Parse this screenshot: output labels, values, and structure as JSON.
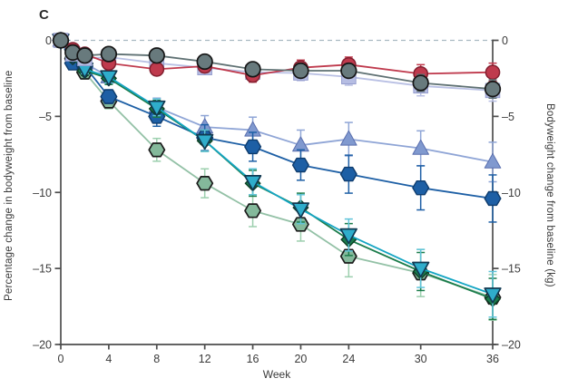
{
  "panel": {
    "label": "C"
  },
  "axes": {
    "x": {
      "label": "Week",
      "tick_values": [
        0,
        4,
        8,
        12,
        16,
        20,
        24,
        30,
        36
      ],
      "tick_labels": [
        "0",
        "4",
        "8",
        "12",
        "16",
        "20",
        "24",
        "30",
        "36"
      ],
      "range": [
        0,
        36
      ]
    },
    "y_left": {
      "label": "Percentage change in bodyweight from baseline",
      "tick_values": [
        0,
        -5,
        -10,
        -15,
        -20
      ],
      "tick_labels": [
        "0",
        "–5",
        "–10",
        "–15",
        "–20"
      ],
      "range": [
        -20,
        0
      ]
    },
    "y_right": {
      "label": "Bodyweight change from baseline (kg)",
      "tick_values": [
        0,
        -5,
        -10,
        -15,
        -20
      ],
      "tick_labels": [
        "0",
        "–5",
        "–10",
        "–15",
        "–20"
      ],
      "range": [
        -20,
        0
      ]
    }
  },
  "chart_data": {
    "type": "line",
    "panel_label": "C",
    "xlabel": "Week",
    "ylabel_left": "Percentage change in bodyweight from baseline",
    "ylabel_right": "Bodyweight change from baseline (kg)",
    "xlim": [
      0,
      36
    ],
    "ylim": [
      -20,
      0
    ],
    "grid": false,
    "legend": "none",
    "zero_reference_line": "dashed",
    "x": [
      0,
      1,
      2,
      4,
      8,
      12,
      16,
      20,
      24,
      30,
      36
    ],
    "series": [
      {
        "id": "lightblue-triangle-up",
        "marker": "triangle-up",
        "size": 8.8,
        "line_color": "#8fa5d6",
        "fill": "#8099cf",
        "stroke": "#5a6fae",
        "stroke_width": 1,
        "err_color": "#8fa5d6",
        "values": [
          0,
          -0.9,
          -1.5,
          -2.4,
          -4.4,
          -5.7,
          -5.9,
          -6.9,
          -6.5,
          -7.1,
          -8.0
        ],
        "err": [
          0.1,
          0.2,
          0.3,
          0.45,
          0.6,
          0.75,
          0.85,
          1.0,
          1.1,
          1.15,
          1.3
        ]
      },
      {
        "id": "green-hexagon",
        "marker": "hexagon",
        "size": 8.6,
        "line_color": "#93c1a6",
        "fill": "#84b99b",
        "stroke": "#1c1c1c",
        "stroke_width": 1.7,
        "err_color": "#9ccfae",
        "values": [
          0,
          -1.2,
          -2.1,
          -4.0,
          -7.2,
          -9.4,
          -11.2,
          -12.1,
          -14.2,
          -15.3,
          -16.9
        ],
        "err": [
          0.1,
          0.2,
          0.35,
          0.5,
          0.75,
          0.95,
          1.05,
          1.1,
          1.35,
          1.55,
          1.5
        ]
      },
      {
        "id": "darkblue-hexagon",
        "marker": "hexagon",
        "size": 8.8,
        "line_color": "#1d5fa5",
        "fill": "#1d5fa5",
        "stroke": "#0f3c6d",
        "stroke_width": 1.4,
        "err_color": "#1d5fa5",
        "values": [
          0,
          -1.5,
          -1.7,
          -3.7,
          -5.0,
          -6.4,
          -7.0,
          -8.2,
          -8.8,
          -9.7,
          -10.4
        ],
        "err": [
          0.1,
          0.2,
          0.3,
          0.45,
          0.65,
          0.85,
          0.95,
          1.0,
          1.25,
          1.45,
          1.55
        ]
      },
      {
        "id": "darkgreen-diamond",
        "marker": "diamond",
        "size": 8.2,
        "line_color": "#1b7c4b",
        "fill": "#1b7c4b",
        "stroke": "#0c3f25",
        "stroke_width": 1.4,
        "err_color": "#1b7c4b",
        "values": [
          0,
          -1.1,
          -2.0,
          -2.5,
          -4.5,
          -6.6,
          -9.4,
          -11.0,
          -13.1,
          -15.2,
          -17.0
        ],
        "err": [
          0.1,
          0.2,
          0.3,
          0.4,
          0.55,
          0.7,
          0.85,
          0.95,
          1.05,
          1.25,
          1.35
        ]
      },
      {
        "id": "teal-triangle-down",
        "marker": "triangle-down",
        "size": 8.8,
        "line_color": "#14a5c3",
        "fill": "#2fadcb",
        "stroke": "#123a52",
        "stroke_width": 1.7,
        "err_color": "#5fc4da",
        "values": [
          0,
          -1.0,
          -1.9,
          -2.4,
          -4.4,
          -6.6,
          -9.3,
          -11.1,
          -12.8,
          -15.0,
          -16.7
        ],
        "err": [
          0.1,
          0.2,
          0.3,
          0.4,
          0.55,
          0.7,
          0.85,
          0.95,
          1.05,
          1.25,
          1.5
        ]
      },
      {
        "id": "lavender-square",
        "marker": "square",
        "size": 8.2,
        "line_color": "#b9c0e4",
        "fill": "#b6bde3",
        "stroke": "#959dce",
        "stroke_width": 1,
        "err_color": "#b9c0e4",
        "values": [
          0,
          -0.9,
          -1.2,
          -1.1,
          -1.5,
          -1.8,
          -2.1,
          -2.15,
          -2.4,
          -3.0,
          -3.3
        ],
        "err": [
          0.15,
          0.2,
          0.25,
          0.3,
          0.35,
          0.4,
          0.45,
          0.5,
          0.55,
          0.65,
          0.7
        ]
      },
      {
        "id": "red-circle",
        "marker": "circle",
        "size": 7.6,
        "line_color": "#bf3a4d",
        "fill": "#bf3a4d",
        "stroke": "#821f2f",
        "stroke_width": 1.5,
        "err_color": "#bf3a4d",
        "values": [
          0,
          -0.6,
          -0.9,
          -1.5,
          -1.9,
          -1.7,
          -2.3,
          -1.8,
          -1.6,
          -2.2,
          -2.1
        ],
        "err": [
          0.1,
          0.2,
          0.25,
          0.3,
          0.35,
          0.4,
          0.45,
          0.5,
          0.5,
          0.6,
          0.6
        ]
      },
      {
        "id": "gray-circle",
        "marker": "circle",
        "size": 8.3,
        "line_color": "#5f7173",
        "fill": "#687a7d",
        "stroke": "#161616",
        "stroke_width": 1.7,
        "err_color": "#5f7173",
        "values": [
          0,
          -0.8,
          -1.0,
          -0.9,
          -1.0,
          -1.4,
          -1.9,
          -2.0,
          -2.0,
          -2.8,
          -3.2
        ],
        "err": [
          0.1,
          0.15,
          0.2,
          0.25,
          0.3,
          0.35,
          0.4,
          0.45,
          0.45,
          0.55,
          0.6
        ]
      }
    ]
  },
  "styles": {
    "background": "#ffffff",
    "axis_color": "#4d4d4d",
    "text_color": "#3b3b3b",
    "zero_line_color": "#a8b9c2"
  }
}
